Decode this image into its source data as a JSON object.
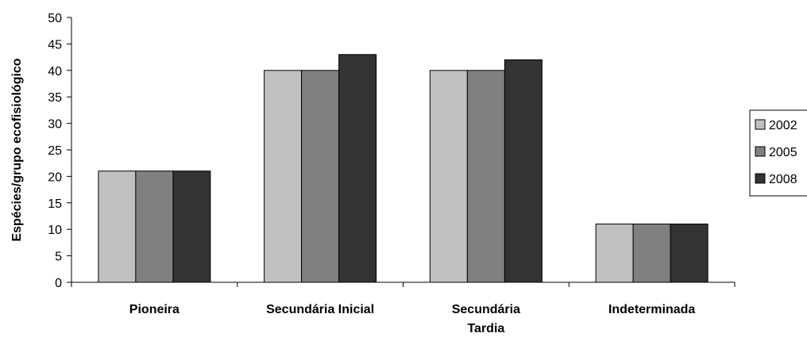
{
  "chart_data": {
    "type": "bar",
    "categories": [
      "Pioneira",
      "Secundária Inicial",
      "Secundária\nTardia",
      "Indeterminada"
    ],
    "series": [
      {
        "name": "2002",
        "values": [
          21,
          40,
          40,
          11
        ],
        "color": "#c0c0c0"
      },
      {
        "name": "2005",
        "values": [
          21,
          40,
          40,
          11
        ],
        "color": "#808080"
      },
      {
        "name": "2008",
        "values": [
          21,
          43,
          42,
          11
        ],
        "color": "#333333"
      }
    ],
    "title": "",
    "xlabel": "",
    "ylabel": "Espécies/grupo ecofisiológico",
    "ylim": [
      0,
      50
    ],
    "yticks": [
      0,
      5,
      10,
      15,
      20,
      25,
      30,
      35,
      40,
      45,
      50
    ],
    "grid": false,
    "legend_position": "right"
  }
}
